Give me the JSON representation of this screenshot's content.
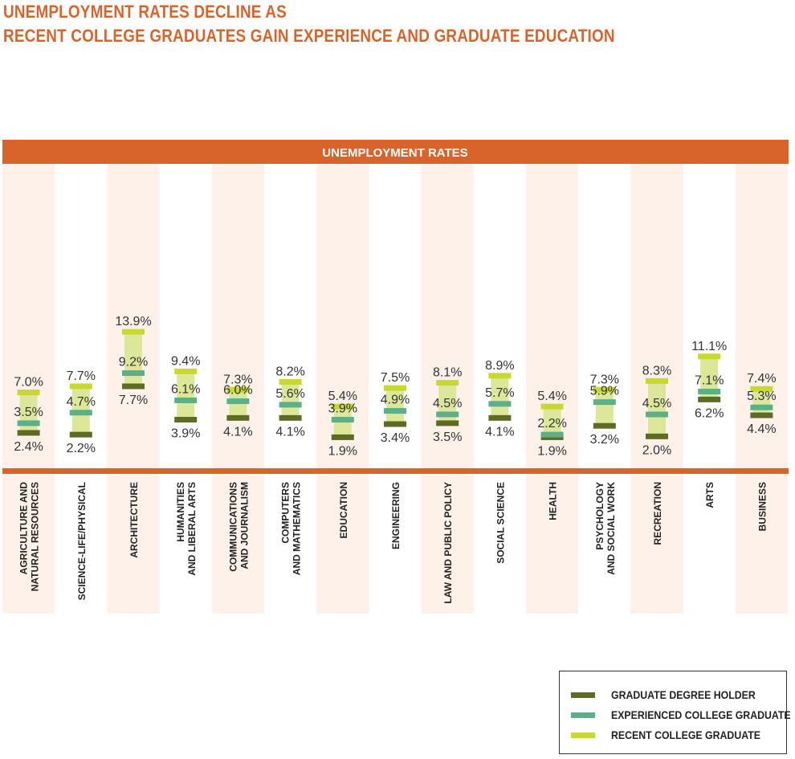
{
  "title_line1": "UNEMPLOYMENT RATES DECLINE AS",
  "title_line2": "RECENT COLLEGE GRADUATES GAIN EXPERIENCE AND GRADUATE EDUCATION",
  "colors": {
    "title": "#d9642b",
    "banner": "#d9642b",
    "banner_text": "#ffffff",
    "stripe": "#fdf1ea",
    "range_fill": "#dde79a",
    "graduate": "#5f6b25",
    "experienced": "#5bb08a",
    "recent": "#c9d82e",
    "label_text": "#333333"
  },
  "legend": [
    {
      "key": "graduate",
      "label": "GRADUATE DEGREE HOLDER",
      "color": "#5f6b25"
    },
    {
      "key": "experienced",
      "label": "EXPERIENCED COLLEGE GRADUATE",
      "color": "#5bb08a"
    },
    {
      "key": "recent",
      "label": "RECENT COLLEGE GRADUATE",
      "color": "#c9d82e"
    }
  ],
  "chart_data": {
    "type": "range",
    "banner_label": "UNEMPLOYMENT RATES",
    "unit": "%",
    "ylim": [
      0,
      14
    ],
    "grid": false,
    "legend_position": "bottom-right",
    "categories": [
      [
        "AGRICULTURE AND",
        "NATURAL RESOURCES"
      ],
      [
        "SCIENCE-LIFE/PHYSICAL"
      ],
      [
        "ARCHITECTURE"
      ],
      [
        "HUMANITIES",
        "AND LIBERAL ARTS"
      ],
      [
        "COMMUNICATIONS",
        "AND JOURNALISM"
      ],
      [
        "COMPUTERS",
        "AND MATHEMATICS"
      ],
      [
        "EDUCATION"
      ],
      [
        "ENGINEERING"
      ],
      [
        "LAW AND PUBLIC POLICY"
      ],
      [
        "SOCIAL SCIENCE"
      ],
      [
        "HEALTH"
      ],
      [
        "PSYCHOLOGY",
        "AND SOCIAL WORK"
      ],
      [
        "RECREATION"
      ],
      [
        "ARTS"
      ],
      [
        "BUSINESS"
      ]
    ],
    "series": [
      {
        "name": "RECENT COLLEGE GRADUATE",
        "key": "recent",
        "values": [
          7.0,
          7.7,
          13.9,
          9.4,
          7.3,
          8.2,
          5.4,
          7.5,
          8.1,
          8.9,
          5.4,
          7.3,
          8.3,
          11.1,
          7.4
        ],
        "labels": [
          "7.0%",
          "7.7%",
          "13.9%",
          "9.4%",
          "7.3%",
          "8.2%",
          "5.4%",
          "7.5%",
          "8.1%",
          "8.9%",
          "5.4%",
          "7.3%",
          "8.3%",
          "11.1%",
          "7.4%"
        ]
      },
      {
        "name": "EXPERIENCED COLLEGE GRADUATE",
        "key": "experienced",
        "values": [
          3.5,
          4.7,
          9.2,
          6.1,
          6.0,
          5.6,
          3.9,
          4.9,
          4.5,
          5.7,
          2.2,
          5.9,
          4.5,
          7.1,
          5.3
        ],
        "labels": [
          "3.5%",
          "4.7%",
          "9.2%",
          "6.1%",
          "6.0%",
          "5.6%",
          "3.9%",
          "4.9%",
          "4.5%",
          "5.7%",
          "2.2%",
          "5.9%",
          "4.5%",
          "7.1%",
          "5.3%"
        ]
      },
      {
        "name": "GRADUATE DEGREE HOLDER",
        "key": "graduate",
        "values": [
          2.4,
          2.2,
          7.7,
          3.9,
          4.1,
          4.1,
          1.9,
          3.4,
          3.5,
          4.1,
          1.9,
          3.2,
          2.0,
          6.2,
          4.4
        ],
        "labels": [
          "2.4%",
          "2.2%",
          "7.7%",
          "3.9%",
          "4.1%",
          "4.1%",
          "1.9%",
          "3.4%",
          "3.5%",
          "4.1%",
          "1.9%",
          "3.2%",
          "2.0%",
          "6.2%",
          "4.4%"
        ]
      }
    ]
  }
}
